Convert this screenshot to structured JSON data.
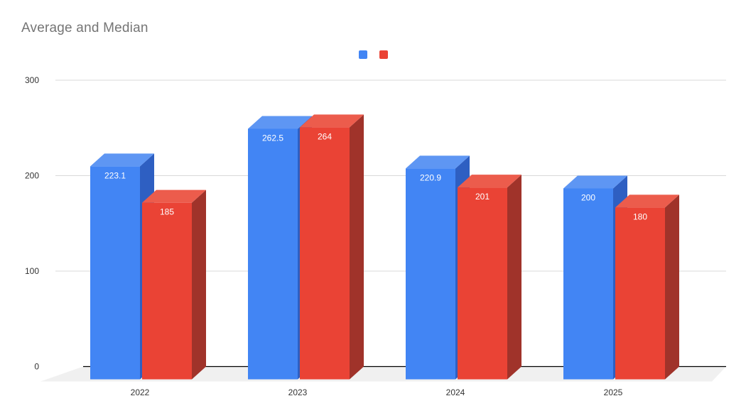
{
  "title": "Average and Median",
  "legend": {
    "position": "top-center",
    "swatches": [
      {
        "name": "series-1-swatch",
        "color": "#4285f4"
      },
      {
        "name": "series-2-swatch",
        "color": "#ea4335"
      }
    ]
  },
  "chart_data": {
    "type": "bar",
    "effect": "3d-column",
    "title": "Average and Median",
    "categories": [
      "2022",
      "2023",
      "2024",
      "2025"
    ],
    "series": [
      {
        "color": "#4285f4",
        "color_top": "#5e96f3",
        "color_side": "#2e5fc2",
        "values": [
          223.1,
          262.5,
          220.9,
          200
        ],
        "labels": [
          "223.1",
          "262.5",
          "220.9",
          "200"
        ]
      },
      {
        "color": "#ea4335",
        "color_top": "#ec5c4c",
        "color_side": "#a0332a",
        "values": [
          185,
          264,
          201,
          180
        ],
        "labels": [
          "185",
          "264",
          "201",
          "180"
        ]
      }
    ],
    "xlabel": "",
    "ylabel": "",
    "y_ticks": [
      "0",
      "100",
      "200",
      "300"
    ],
    "y_tick_values": [
      0,
      100,
      200,
      300
    ],
    "ylim": [
      0,
      300
    ],
    "grid": true,
    "legend_position": "top"
  },
  "colors": {
    "background": "#ffffff",
    "title": "#757575",
    "axis_labels": "#333333",
    "gridline": "#d9d9d9",
    "zero_line": "#000000",
    "floor": "#f0f0f0",
    "value_label": "#ffffff"
  }
}
